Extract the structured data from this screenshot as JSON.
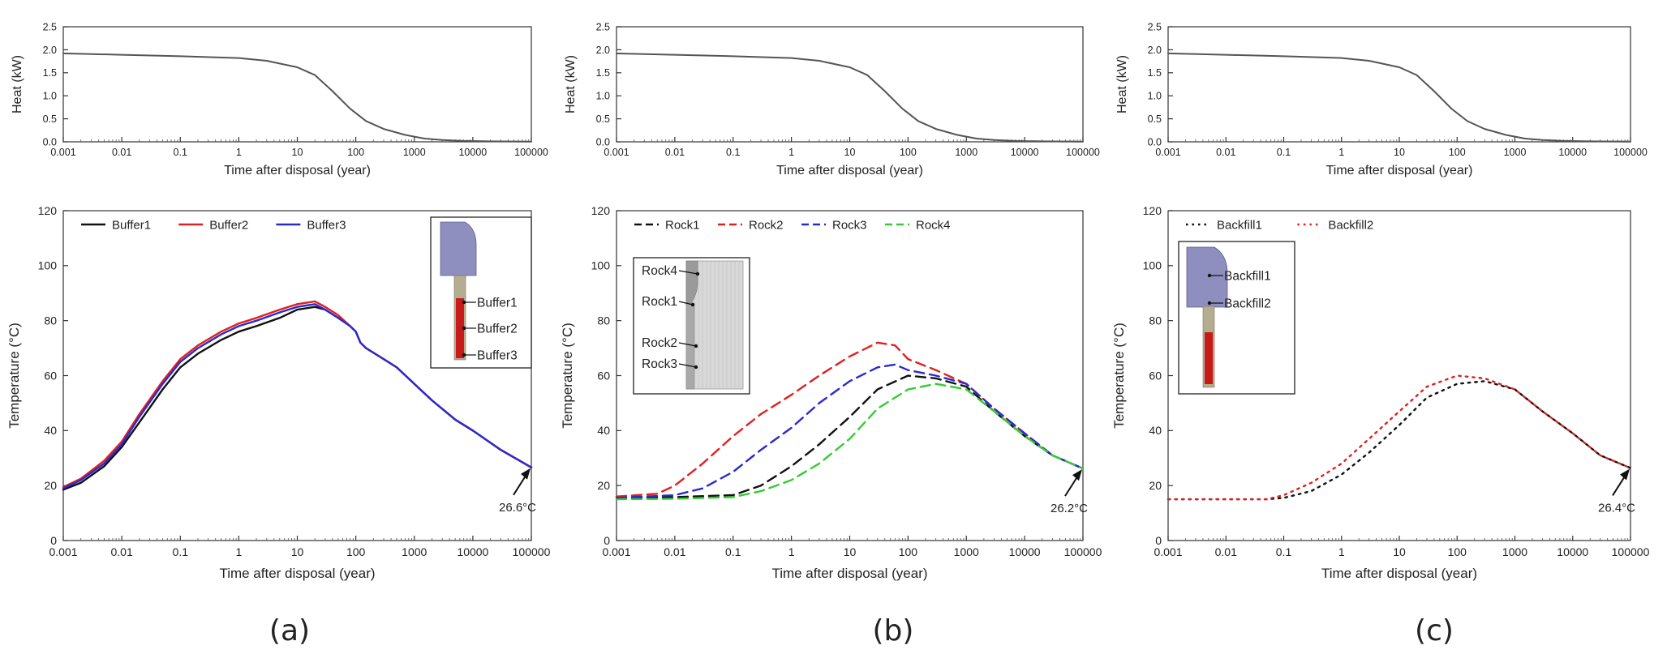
{
  "panel_labels": [
    "(a)",
    "(b)",
    "(c)"
  ],
  "chart_data": [
    {
      "id": "heat-a",
      "type": "line",
      "xscale": "log",
      "xlabel": "Time after disposal (year)",
      "ylabel": "Heat (kW)",
      "xlim": [
        0.001,
        100000
      ],
      "ylim": [
        0,
        2.5
      ],
      "xticks": [
        "0.001",
        "0.01",
        "0.1",
        "1",
        "10",
        "100",
        "1000",
        "10000",
        "100000"
      ],
      "yticks": [
        "0.0",
        "0.5",
        "1.0",
        "1.5",
        "2.0",
        "2.5"
      ],
      "series": [
        {
          "name": "Heat",
          "color": "#555555",
          "dash": "solid",
          "x": [
            0.001,
            0.01,
            0.1,
            1,
            3,
            10,
            20,
            40,
            80,
            150,
            300,
            700,
            1500,
            3000,
            7000,
            20000,
            100000
          ],
          "y": [
            1.92,
            1.89,
            1.86,
            1.82,
            1.76,
            1.62,
            1.45,
            1.1,
            0.72,
            0.45,
            0.28,
            0.15,
            0.07,
            0.04,
            0.02,
            0.01,
            0.005
          ]
        }
      ]
    },
    {
      "id": "heat-b",
      "type": "line",
      "xscale": "log",
      "xlabel": "Time after disposal (year)",
      "ylabel": "Heat (kW)",
      "xlim": [
        0.001,
        100000
      ],
      "ylim": [
        0,
        2.5
      ],
      "xticks": [
        "0.001",
        "0.01",
        "0.1",
        "1",
        "10",
        "100",
        "1000",
        "10000",
        "100000"
      ],
      "yticks": [
        "0.0",
        "0.5",
        "1.0",
        "1.5",
        "2.0",
        "2.5"
      ],
      "series": [
        {
          "name": "Heat",
          "color": "#555555",
          "dash": "solid",
          "x": [
            0.001,
            0.01,
            0.1,
            1,
            3,
            10,
            20,
            40,
            80,
            150,
            300,
            700,
            1500,
            3000,
            7000,
            20000,
            100000
          ],
          "y": [
            1.92,
            1.89,
            1.86,
            1.82,
            1.76,
            1.62,
            1.45,
            1.1,
            0.72,
            0.45,
            0.28,
            0.15,
            0.07,
            0.04,
            0.02,
            0.01,
            0.005
          ]
        }
      ]
    },
    {
      "id": "heat-c",
      "type": "line",
      "xscale": "log",
      "xlabel": "Time after disposal (year)",
      "ylabel": "Heat (kW)",
      "xlim": [
        0.001,
        100000
      ],
      "ylim": [
        0,
        2.5
      ],
      "xticks": [
        "0.001",
        "0.01",
        "0.1",
        "1",
        "10",
        "100",
        "1000",
        "10000",
        "100000"
      ],
      "yticks": [
        "0.0",
        "0.5",
        "1.0",
        "1.5",
        "2.0",
        "2.5"
      ],
      "series": [
        {
          "name": "Heat",
          "color": "#555555",
          "dash": "solid",
          "x": [
            0.001,
            0.01,
            0.1,
            1,
            3,
            10,
            20,
            40,
            80,
            150,
            300,
            700,
            1500,
            3000,
            7000,
            20000,
            100000
          ],
          "y": [
            1.92,
            1.89,
            1.86,
            1.82,
            1.76,
            1.62,
            1.45,
            1.1,
            0.72,
            0.45,
            0.28,
            0.15,
            0.07,
            0.04,
            0.02,
            0.01,
            0.005
          ]
        }
      ]
    },
    {
      "id": "temp-a",
      "type": "line",
      "xscale": "log",
      "xlabel": "Time after disposal (year)",
      "ylabel": "Temperature (°C)",
      "xlim": [
        0.001,
        100000
      ],
      "ylim": [
        0,
        120
      ],
      "xticks": [
        "0.001",
        "0.01",
        "0.1",
        "1",
        "10",
        "100",
        "1000",
        "10000",
        "100000"
      ],
      "yticks": [
        "0",
        "20",
        "40",
        "60",
        "80",
        "100",
        "120"
      ],
      "legend": "top-left",
      "annotation": {
        "text": "26.6°C",
        "x": 100000,
        "y": 26.6
      },
      "inset": {
        "kind": "buffer",
        "labels": [
          "Buffer1",
          "Buffer2",
          "Buffer3"
        ]
      },
      "series": [
        {
          "name": "Buffer1",
          "color": "#111111",
          "dash": "solid",
          "x": [
            0.001,
            0.002,
            0.005,
            0.01,
            0.02,
            0.05,
            0.1,
            0.2,
            0.5,
            1,
            2,
            5,
            10,
            20,
            30,
            50,
            80,
            100,
            120,
            150,
            300,
            500,
            1000,
            2000,
            5000,
            10000,
            30000,
            100000
          ],
          "y": [
            18.5,
            21,
            27,
            34,
            43,
            55,
            63,
            68,
            73,
            76,
            78,
            81,
            84,
            85,
            84,
            81,
            78,
            76,
            72,
            70,
            66,
            63,
            57,
            51,
            44,
            40,
            33,
            26.6
          ]
        },
        {
          "name": "Buffer2",
          "color": "#e02020",
          "dash": "solid",
          "x": [
            0.001,
            0.002,
            0.005,
            0.01,
            0.02,
            0.05,
            0.1,
            0.2,
            0.5,
            1,
            2,
            5,
            10,
            20,
            30,
            50,
            80,
            100,
            120,
            150,
            300,
            500,
            1000,
            2000,
            5000,
            10000,
            30000,
            100000
          ],
          "y": [
            19.5,
            22.5,
            29,
            36,
            46,
            58,
            66,
            71,
            76,
            79,
            81,
            84,
            86,
            87,
            85,
            82,
            78,
            76,
            72,
            70,
            66,
            63,
            57,
            51,
            44,
            40,
            33,
            26.6
          ]
        },
        {
          "name": "Buffer3",
          "color": "#2a2ad0",
          "dash": "solid",
          "x": [
            0.001,
            0.002,
            0.005,
            0.01,
            0.02,
            0.05,
            0.1,
            0.2,
            0.5,
            1,
            2,
            5,
            10,
            20,
            30,
            50,
            80,
            100,
            120,
            150,
            300,
            500,
            1000,
            2000,
            5000,
            10000,
            30000,
            100000
          ],
          "y": [
            19,
            22,
            28,
            35,
            45,
            57,
            65,
            70,
            75,
            78,
            80,
            83,
            85,
            86,
            84,
            81,
            78,
            76,
            72,
            70,
            66,
            63,
            57,
            51,
            44,
            40,
            33,
            26.6
          ]
        }
      ]
    },
    {
      "id": "temp-b",
      "type": "line",
      "xscale": "log",
      "xlabel": "Time after disposal (year)",
      "ylabel": "Temperature (°C)",
      "xlim": [
        0.001,
        100000
      ],
      "ylim": [
        0,
        120
      ],
      "xticks": [
        "0.001",
        "0.01",
        "0.1",
        "1",
        "10",
        "100",
        "1000",
        "10000",
        "100000"
      ],
      "yticks": [
        "0",
        "20",
        "40",
        "60",
        "80",
        "100",
        "120"
      ],
      "legend": "top-left",
      "annotation": {
        "text": "26.2°C",
        "x": 100000,
        "y": 26.2
      },
      "inset": {
        "kind": "rock",
        "labels": [
          "Rock4",
          "Rock1",
          "Rock2",
          "Rock3"
        ]
      },
      "series": [
        {
          "name": "Rock1",
          "color": "#111111",
          "dash": "dashed",
          "x": [
            0.001,
            0.01,
            0.1,
            0.3,
            1,
            3,
            10,
            30,
            100,
            300,
            1000,
            3000,
            10000,
            30000,
            100000
          ],
          "y": [
            15.5,
            15.8,
            16.5,
            20,
            27,
            35,
            45,
            55,
            60,
            59,
            56,
            47,
            38,
            31,
            26.2
          ]
        },
        {
          "name": "Rock2",
          "color": "#e02020",
          "dash": "dashed",
          "x": [
            0.001,
            0.005,
            0.01,
            0.03,
            0.1,
            0.3,
            1,
            3,
            10,
            30,
            60,
            100,
            300,
            1000,
            3000,
            10000,
            30000,
            100000
          ],
          "y": [
            16,
            17,
            20,
            28,
            38,
            46,
            53,
            60,
            67,
            72,
            71,
            66,
            62,
            57,
            48,
            39,
            31,
            26.2
          ]
        },
        {
          "name": "Rock3",
          "color": "#2a2ad0",
          "dash": "dashed",
          "x": [
            0.001,
            0.01,
            0.03,
            0.1,
            0.3,
            1,
            3,
            10,
            30,
            60,
            100,
            300,
            1000,
            3000,
            10000,
            30000,
            100000
          ],
          "y": [
            15.5,
            16.5,
            19,
            25,
            33,
            41,
            50,
            58,
            63,
            64,
            62,
            60,
            57,
            48,
            39,
            31,
            26.2
          ]
        },
        {
          "name": "Rock4",
          "color": "#33cc33",
          "dash": "dashed",
          "x": [
            0.001,
            0.01,
            0.1,
            0.3,
            1,
            3,
            10,
            30,
            100,
            300,
            1000,
            3000,
            10000,
            30000,
            100000
          ],
          "y": [
            15,
            15.2,
            15.8,
            18,
            22,
            28,
            37,
            48,
            55,
            57,
            55,
            47,
            38,
            31,
            26.2
          ]
        }
      ]
    },
    {
      "id": "temp-c",
      "type": "line",
      "xscale": "log",
      "xlabel": "Time after disposal (year)",
      "ylabel": "Temperature (°C)",
      "xlim": [
        0.001,
        100000
      ],
      "ylim": [
        0,
        120
      ],
      "xticks": [
        "0.001",
        "0.01",
        "0.1",
        "1",
        "10",
        "100",
        "1000",
        "10000",
        "100000"
      ],
      "yticks": [
        "0",
        "20",
        "40",
        "60",
        "80",
        "100",
        "120"
      ],
      "legend": "top-left",
      "annotation": {
        "text": "26.4°C",
        "x": 100000,
        "y": 26.4
      },
      "inset": {
        "kind": "backfill",
        "labels": [
          "Backfill1",
          "Backfill2"
        ]
      },
      "series": [
        {
          "name": "Backfill1",
          "color": "#111111",
          "dash": "dotted",
          "x": [
            0.001,
            0.01,
            0.05,
            0.1,
            0.3,
            1,
            3,
            10,
            30,
            100,
            300,
            1000,
            3000,
            10000,
            30000,
            100000
          ],
          "y": [
            15,
            15,
            15,
            15.5,
            18,
            24,
            32,
            42,
            52,
            57,
            58,
            55,
            47,
            39,
            31,
            26.4
          ]
        },
        {
          "name": "Backfill2",
          "color": "#e02020",
          "dash": "dotted",
          "x": [
            0.001,
            0.01,
            0.05,
            0.1,
            0.3,
            1,
            3,
            10,
            30,
            100,
            300,
            1000,
            3000,
            10000,
            30000,
            100000
          ],
          "y": [
            15,
            15,
            15,
            16.5,
            21,
            28,
            37,
            47,
            56,
            60,
            59,
            55,
            47,
            39,
            31,
            26.4
          ]
        }
      ]
    }
  ]
}
